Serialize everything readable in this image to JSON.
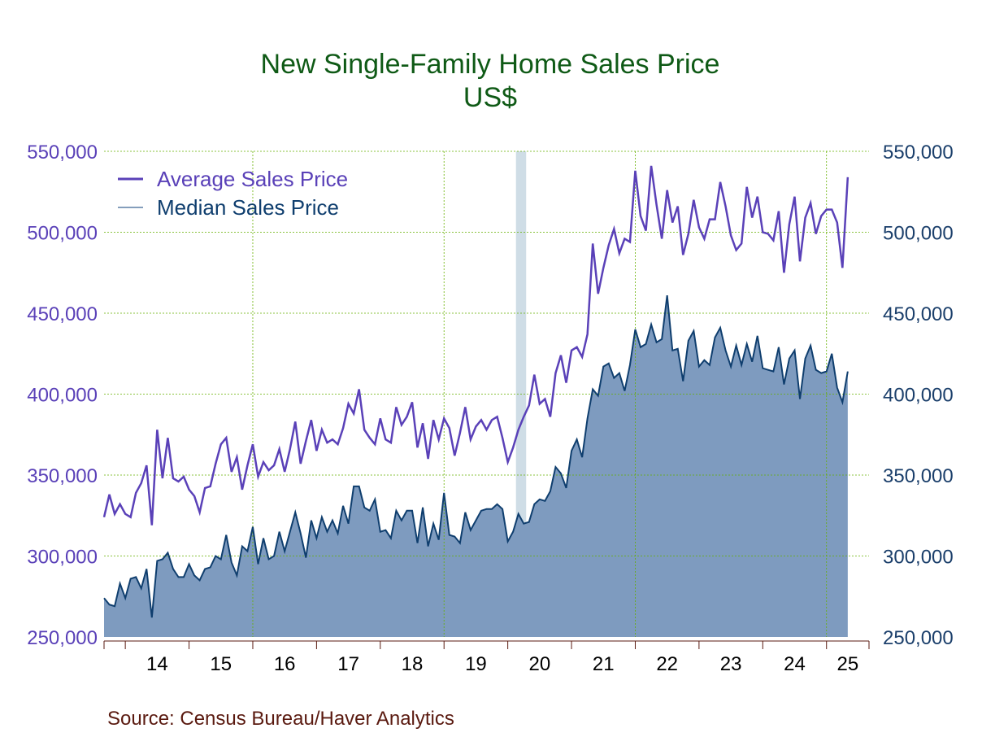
{
  "chart_data": {
    "type": "area",
    "title": "New Single-Family Home Sales Price",
    "subtitle": "US$",
    "source": "Source:  Census Bureau/Haver Analytics",
    "xlabel": "",
    "ylabel": "",
    "ylim": [
      250000,
      550000
    ],
    "y_ticks": [
      250000,
      300000,
      350000,
      400000,
      450000,
      500000,
      550000
    ],
    "y_tick_labels": [
      "250,000",
      "300,000",
      "350,000",
      "400,000",
      "450,000",
      "500,000",
      "550,000"
    ],
    "x_start": "2013-09",
    "x_end": "2025-09",
    "year_labels": [
      "14",
      "15",
      "16",
      "17",
      "18",
      "19",
      "20",
      "21",
      "22",
      "23",
      "24",
      "25"
    ],
    "grid": true,
    "legend_position": "top-left",
    "recession_band": {
      "start": "2020-03",
      "end": "2020-04",
      "color": "#cfdde6"
    },
    "colors": {
      "title": "#0f5a16",
      "average_line": "#5a41b8",
      "median_line": "#0f3e6e",
      "median_fill": "#7e9bbf",
      "grid": "#66b000",
      "left_axis_text": "#5a41b8",
      "right_axis_text": "#1b3f6b",
      "source_text": "#5a1a10"
    },
    "series": [
      {
        "name": "Average Sales Price",
        "style": "line",
        "values": [
          324000,
          338000,
          326000,
          332000,
          326000,
          324000,
          339000,
          345000,
          356000,
          319000,
          378000,
          348000,
          373000,
          348000,
          346000,
          349000,
          341000,
          337000,
          327000,
          342000,
          343000,
          357000,
          369000,
          373000,
          352000,
          361000,
          341000,
          356000,
          369000,
          349000,
          358000,
          353000,
          356000,
          366000,
          352000,
          366000,
          383000,
          357000,
          371000,
          384000,
          365000,
          378000,
          370000,
          372000,
          369000,
          379000,
          394000,
          388000,
          403000,
          378000,
          373000,
          369000,
          385000,
          372000,
          370000,
          392000,
          381000,
          386000,
          395000,
          367000,
          382000,
          360000,
          384000,
          372000,
          385000,
          379000,
          362000,
          376000,
          392000,
          372000,
          380000,
          384000,
          378000,
          384000,
          386000,
          373000,
          358000,
          367000,
          378000,
          386000,
          393000,
          412000,
          394000,
          397000,
          386000,
          413000,
          424000,
          407000,
          427000,
          429000,
          423000,
          437000,
          493000,
          462000,
          478000,
          492000,
          502000,
          487000,
          496000,
          494000,
          538000,
          510000,
          501000,
          541000,
          517000,
          496000,
          526000,
          506000,
          516000,
          486000,
          499000,
          520000,
          503000,
          496000,
          508000,
          508000,
          531000,
          516000,
          498000,
          489000,
          493000,
          528000,
          509000,
          522000,
          500000,
          499000,
          495000,
          513000,
          475000,
          505000,
          522000,
          482000,
          509000,
          518000,
          499000,
          510000,
          514000,
          514000,
          506000,
          478000,
          534000
        ]
      },
      {
        "name": "Median Sales Price",
        "style": "area",
        "values": [
          274000,
          270000,
          269000,
          283000,
          274000,
          286000,
          287000,
          280000,
          292000,
          262000,
          297000,
          298000,
          302000,
          292000,
          287000,
          287000,
          295000,
          288000,
          285000,
          292000,
          293000,
          300000,
          298000,
          313000,
          296000,
          288000,
          306000,
          303000,
          318000,
          295000,
          311000,
          298000,
          300000,
          315000,
          303000,
          315000,
          327000,
          314000,
          299000,
          322000,
          311000,
          324000,
          315000,
          322000,
          314000,
          331000,
          320000,
          343000,
          343000,
          330000,
          328000,
          335000,
          315000,
          316000,
          311000,
          328000,
          322000,
          328000,
          328000,
          308000,
          330000,
          306000,
          320000,
          310000,
          339000,
          313000,
          312000,
          308000,
          327000,
          316000,
          322000,
          328000,
          329000,
          329000,
          332000,
          329000,
          309000,
          315000,
          326000,
          320000,
          321000,
          332000,
          335000,
          334000,
          340000,
          355000,
          351000,
          342000,
          365000,
          372000,
          361000,
          385000,
          403000,
          399000,
          417000,
          419000,
          410000,
          413000,
          402000,
          418000,
          440000,
          429000,
          431000,
          443000,
          432000,
          434000,
          461000,
          427000,
          428000,
          408000,
          433000,
          439000,
          417000,
          421000,
          418000,
          435000,
          441000,
          427000,
          417000,
          430000,
          418000,
          431000,
          420000,
          436000,
          416000,
          415000,
          414000,
          429000,
          406000,
          422000,
          427000,
          397000,
          422000,
          430000,
          415000,
          413000,
          414000,
          425000,
          404000,
          395000,
          414000
        ]
      }
    ]
  }
}
